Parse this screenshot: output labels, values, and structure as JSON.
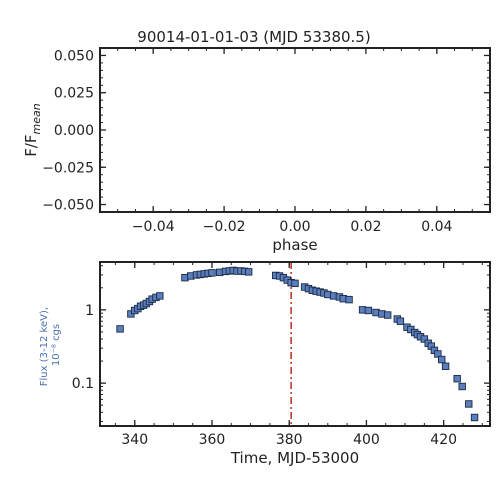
{
  "chart_data": [
    {
      "type": "line",
      "title": "90014-01-01-03 (MJD 53380.5)",
      "xlabel": "phase",
      "ylabel": "F/F",
      "ylabel_sub": "mean",
      "xlim": [
        -0.055,
        0.055
      ],
      "ylim": [
        -0.055,
        0.055
      ],
      "xticks": [
        -0.04,
        -0.02,
        0.0,
        0.02,
        0.04
      ],
      "xtick_labels": [
        "−0.04",
        "−0.02",
        "0.00",
        "0.02",
        "0.04"
      ],
      "yticks": [
        0.05,
        0.025,
        0.0,
        -0.025,
        -0.05
      ],
      "ytick_labels": [
        "0.050",
        "0.025",
        "0.000",
        "−0.025",
        "−0.050"
      ],
      "series": []
    },
    {
      "type": "scatter",
      "xlabel": "Time, MJD-53000",
      "ylabel_line1": "Flux (3-12 keV),",
      "ylabel_line2": "10⁻⁸ cgs",
      "y_scale": "log",
      "xlim": [
        331,
        432
      ],
      "ylim": [
        0.026,
        4.5
      ],
      "xticks": [
        340,
        360,
        380,
        400,
        420
      ],
      "xtick_labels": [
        "340",
        "360",
        "380",
        "400",
        "420"
      ],
      "yticks": [
        1,
        0.1
      ],
      "ytick_labels": [
        "1",
        "0.1"
      ],
      "vline_x": 380.5,
      "colors": {
        "marker_fill": "#5b7fbe",
        "marker_edge": "#1a2a44",
        "vline": "#c0392b",
        "ylabel": "#4a6fb0"
      },
      "points": [
        [
          336.2,
          0.55
        ],
        [
          339.0,
          0.88
        ],
        [
          340.0,
          0.98
        ],
        [
          340.8,
          1.04
        ],
        [
          341.5,
          1.12
        ],
        [
          342.3,
          1.16
        ],
        [
          343.0,
          1.22
        ],
        [
          343.8,
          1.3
        ],
        [
          344.5,
          1.4
        ],
        [
          345.5,
          1.48
        ],
        [
          346.5,
          1.55
        ],
        [
          353.0,
          2.75
        ],
        [
          354.5,
          2.9
        ],
        [
          356.0,
          3.0
        ],
        [
          357.0,
          3.05
        ],
        [
          358.0,
          3.1
        ],
        [
          359.0,
          3.15
        ],
        [
          360.0,
          3.2
        ],
        [
          362.0,
          3.25
        ],
        [
          363.5,
          3.35
        ],
        [
          364.5,
          3.4
        ],
        [
          365.5,
          3.45
        ],
        [
          366.5,
          3.38
        ],
        [
          367.5,
          3.4
        ],
        [
          368.5,
          3.35
        ],
        [
          369.5,
          3.3
        ],
        [
          376.5,
          2.95
        ],
        [
          377.5,
          2.9
        ],
        [
          378.5,
          2.75
        ],
        [
          379.5,
          2.55
        ],
        [
          380.5,
          2.35
        ],
        [
          381.5,
          2.3
        ],
        [
          384.0,
          2.05
        ],
        [
          385.0,
          1.95
        ],
        [
          386.0,
          1.85
        ],
        [
          387.0,
          1.8
        ],
        [
          388.0,
          1.75
        ],
        [
          389.0,
          1.7
        ],
        [
          390.0,
          1.62
        ],
        [
          391.5,
          1.55
        ],
        [
          393.0,
          1.5
        ],
        [
          394.0,
          1.42
        ],
        [
          395.5,
          1.38
        ],
        [
          399.0,
          1.0
        ],
        [
          400.5,
          0.98
        ],
        [
          402.5,
          0.92
        ],
        [
          404.0,
          0.88
        ],
        [
          405.5,
          0.85
        ],
        [
          408.0,
          0.75
        ],
        [
          408.8,
          0.7
        ],
        [
          410.5,
          0.58
        ],
        [
          411.5,
          0.54
        ],
        [
          412.5,
          0.49
        ],
        [
          413.2,
          0.46
        ],
        [
          414.0,
          0.43
        ],
        [
          415.0,
          0.4
        ],
        [
          416.0,
          0.35
        ],
        [
          416.8,
          0.32
        ],
        [
          417.6,
          0.28
        ],
        [
          418.5,
          0.25
        ],
        [
          419.5,
          0.21
        ],
        [
          420.5,
          0.17
        ],
        [
          423.5,
          0.115
        ],
        [
          424.8,
          0.09
        ],
        [
          426.5,
          0.052
        ],
        [
          428.0,
          0.034
        ]
      ]
    }
  ]
}
